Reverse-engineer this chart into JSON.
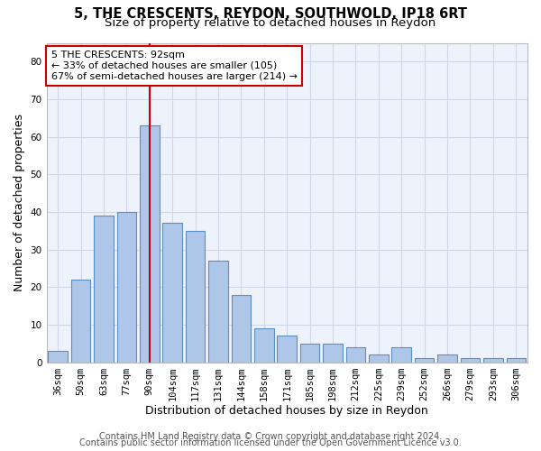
{
  "title_line1": "5, THE CRESCENTS, REYDON, SOUTHWOLD, IP18 6RT",
  "title_line2": "Size of property relative to detached houses in Reydon",
  "xlabel": "Distribution of detached houses by size in Reydon",
  "ylabel": "Number of detached properties",
  "categories": [
    "36sqm",
    "50sqm",
    "63sqm",
    "77sqm",
    "90sqm",
    "104sqm",
    "117sqm",
    "131sqm",
    "144sqm",
    "158sqm",
    "171sqm",
    "185sqm",
    "198sqm",
    "212sqm",
    "225sqm",
    "239sqm",
    "252sqm",
    "266sqm",
    "279sqm",
    "293sqm",
    "306sqm"
  ],
  "values": [
    3,
    22,
    39,
    40,
    63,
    37,
    35,
    27,
    18,
    9,
    7,
    5,
    5,
    4,
    2,
    4,
    1,
    2,
    1,
    1,
    1
  ],
  "bar_color": "#aec6e8",
  "bar_edge_color": "#5a8fc0",
  "property_index": 4,
  "red_line_color": "#cc0000",
  "annotation_line1": "5 THE CRESCENTS: 92sqm",
  "annotation_line2": "← 33% of detached houses are smaller (105)",
  "annotation_line3": "67% of semi-detached houses are larger (214) →",
  "annotation_box_edge": "#cc0000",
  "ylim": [
    0,
    85
  ],
  "yticks": [
    0,
    10,
    20,
    30,
    40,
    50,
    60,
    70,
    80
  ],
  "grid_color": "#d0d8e8",
  "bg_color": "#eef2fa",
  "footer1": "Contains HM Land Registry data © Crown copyright and database right 2024.",
  "footer2": "Contains public sector information licensed under the Open Government Licence v3.0.",
  "title_fontsize": 10.5,
  "subtitle_fontsize": 9.5,
  "axis_label_fontsize": 9,
  "tick_fontsize": 7.5,
  "annotation_fontsize": 8,
  "footer_fontsize": 7
}
